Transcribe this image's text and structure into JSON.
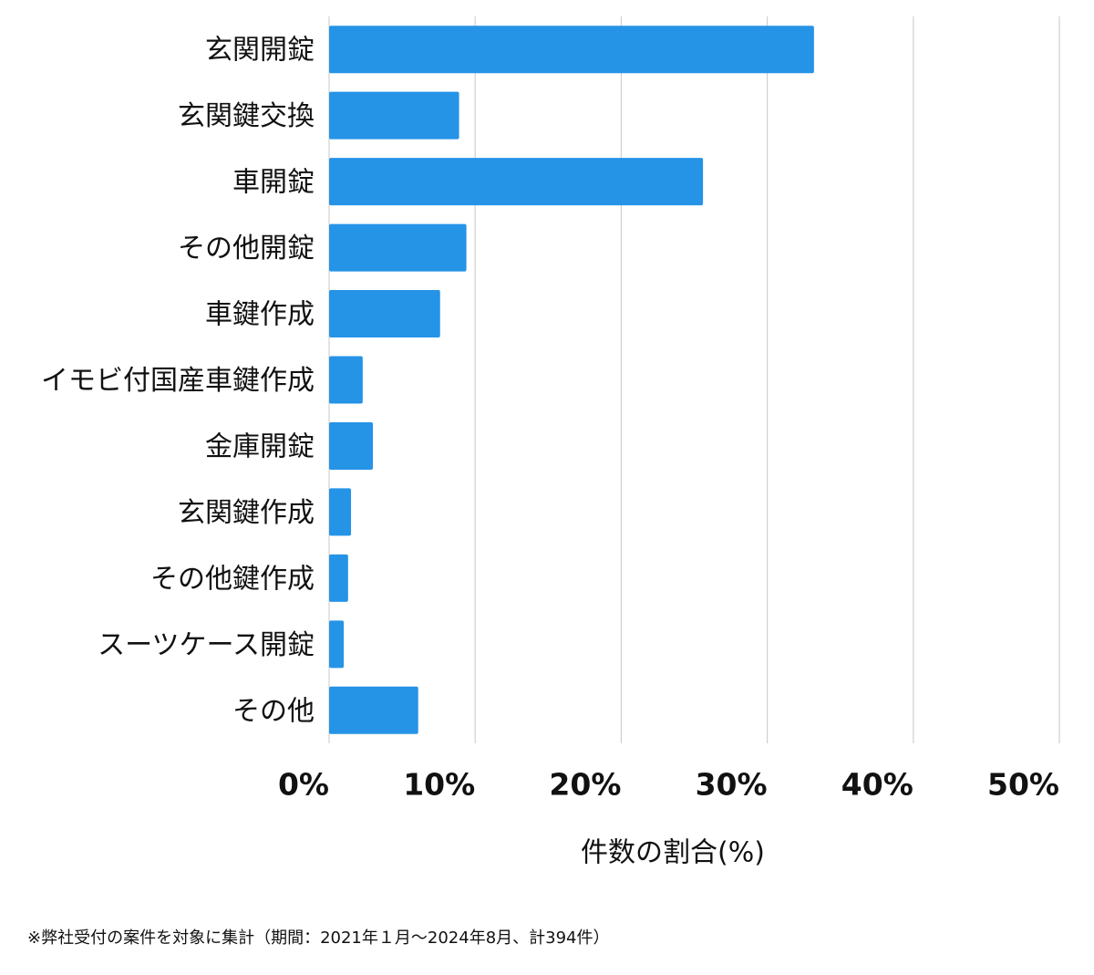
{
  "chart_data": {
    "type": "bar",
    "orientation": "horizontal",
    "categories": [
      "玄関開錠",
      "玄関鍵交換",
      "車開錠",
      "その他開錠",
      "車鍵作成",
      "イモビ付国産車鍵作成",
      "金庫開錠",
      "玄関鍵作成",
      "その他鍵作成",
      "スーツケース開錠",
      "その他"
    ],
    "values": [
      33.2,
      8.9,
      25.6,
      9.4,
      7.6,
      2.3,
      3.0,
      1.5,
      1.3,
      1.0,
      6.1
    ],
    "color": "#2593e6",
    "xlim": [
      0,
      50
    ],
    "xticks": [
      {
        "value": 0,
        "label": "0%"
      },
      {
        "value": 10,
        "label": "10%"
      },
      {
        "value": 20,
        "label": "20%"
      },
      {
        "value": 30,
        "label": "30%"
      },
      {
        "value": 40,
        "label": "40%"
      },
      {
        "value": 50,
        "label": "50%"
      }
    ],
    "xlabel": "件数の割合(%)",
    "grid": true,
    "footnote": "※弊社受付の案件を対象に集計（期間：2021年１月〜2024年8月、計394件）"
  }
}
